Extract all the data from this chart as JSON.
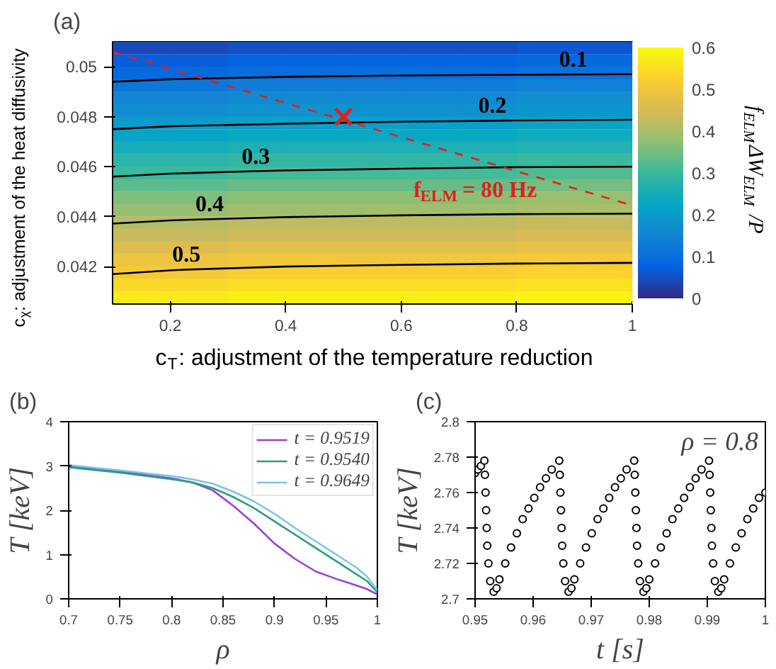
{
  "chart_data": [
    {
      "type": "heatmap",
      "xlabel": "c$_{T}$: adjustment of the temperature reduction",
      "ylabel": "c$_{χ}$: adjustment of the heat diffusivity",
      "clabel": "f$_{ELM}$ΔW$_{ELM}$ /P",
      "xlim": [
        0.1,
        1
      ],
      "ylim": [
        0.0405,
        0.051
      ],
      "xticks": [
        0.2,
        0.4,
        0.6,
        0.8,
        1
      ],
      "yticks": [
        0.042,
        0.044,
        0.046,
        0.048,
        0.05
      ],
      "clim": [
        0,
        0.6
      ],
      "cticks": [
        0,
        0.1,
        0.2,
        0.3,
        0.4,
        0.5,
        0.6
      ],
      "grid": false,
      "cells": [
        [
          0.04,
          0.04,
          0.05,
          0.05,
          0.05,
          0.05,
          0.05,
          0.06,
          0.06
        ],
        [
          0.07,
          0.07,
          0.08,
          0.08,
          0.08,
          0.08,
          0.08,
          0.09,
          0.09
        ],
        [
          0.09,
          0.09,
          0.1,
          0.1,
          0.1,
          0.1,
          0.1,
          0.11,
          0.11
        ],
        [
          0.12,
          0.12,
          0.13,
          0.13,
          0.13,
          0.13,
          0.13,
          0.14,
          0.14
        ],
        [
          0.15,
          0.15,
          0.16,
          0.16,
          0.16,
          0.16,
          0.16,
          0.17,
          0.17
        ],
        [
          0.17,
          0.17,
          0.18,
          0.18,
          0.18,
          0.18,
          0.18,
          0.19,
          0.19
        ],
        [
          0.2,
          0.2,
          0.21,
          0.21,
          0.21,
          0.21,
          0.21,
          0.22,
          0.22
        ],
        [
          0.22,
          0.22,
          0.23,
          0.23,
          0.23,
          0.23,
          0.23,
          0.24,
          0.24
        ],
        [
          0.25,
          0.25,
          0.26,
          0.26,
          0.26,
          0.26,
          0.26,
          0.27,
          0.27
        ],
        [
          0.28,
          0.28,
          0.29,
          0.29,
          0.29,
          0.29,
          0.29,
          0.3,
          0.3
        ],
        [
          0.3,
          0.3,
          0.31,
          0.31,
          0.31,
          0.31,
          0.31,
          0.32,
          0.32
        ],
        [
          0.33,
          0.33,
          0.34,
          0.34,
          0.34,
          0.34,
          0.34,
          0.35,
          0.35
        ],
        [
          0.36,
          0.36,
          0.37,
          0.37,
          0.37,
          0.37,
          0.37,
          0.38,
          0.38
        ],
        [
          0.38,
          0.38,
          0.39,
          0.39,
          0.39,
          0.39,
          0.39,
          0.4,
          0.4
        ],
        [
          0.41,
          0.41,
          0.42,
          0.42,
          0.42,
          0.42,
          0.42,
          0.43,
          0.43
        ],
        [
          0.43,
          0.43,
          0.44,
          0.44,
          0.44,
          0.44,
          0.44,
          0.45,
          0.45
        ],
        [
          0.46,
          0.46,
          0.47,
          0.47,
          0.47,
          0.47,
          0.47,
          0.48,
          0.48
        ],
        [
          0.49,
          0.49,
          0.5,
          0.5,
          0.5,
          0.5,
          0.5,
          0.51,
          0.51
        ],
        [
          0.51,
          0.51,
          0.52,
          0.52,
          0.52,
          0.52,
          0.52,
          0.53,
          0.53
        ],
        [
          0.54,
          0.54,
          0.55,
          0.55,
          0.55,
          0.55,
          0.55,
          0.56,
          0.56
        ],
        [
          0.57,
          0.57,
          0.58,
          0.58,
          0.58,
          0.58,
          0.58,
          0.59,
          0.59
        ]
      ],
      "series": [
        {
          "type": "line",
          "color": "#000000",
          "x": [
            0.1,
            0.2,
            0.4,
            0.6,
            0.8,
            0.9,
            1
          ],
          "values": [
            0.0494,
            0.0495,
            0.0496,
            0.04965,
            0.04968,
            0.04969,
            0.0497
          ]
        },
        {
          "type": "line",
          "color": "#000000",
          "x": [
            0.1,
            0.2,
            0.4,
            0.6,
            0.76,
            0.8,
            1
          ],
          "values": [
            0.0475,
            0.04762,
            0.04772,
            0.0478,
            0.04784,
            0.04785,
            0.04788
          ]
        },
        {
          "type": "line",
          "color": "#000000",
          "x": [
            0.1,
            0.2,
            0.35,
            0.4,
            0.6,
            0.8,
            1
          ],
          "values": [
            0.0456,
            0.04572,
            0.04582,
            0.04585,
            0.04592,
            0.04598,
            0.046
          ]
        },
        {
          "type": "line",
          "color": "#000000",
          "x": [
            0.1,
            0.2,
            0.27,
            0.4,
            0.6,
            0.8,
            1
          ],
          "values": [
            0.04372,
            0.04385,
            0.0439,
            0.04398,
            0.04405,
            0.0441,
            0.04412
          ]
        },
        {
          "type": "line",
          "color": "#000000",
          "x": [
            0.1,
            0.2,
            0.23,
            0.4,
            0.6,
            0.8,
            1
          ],
          "values": [
            0.0417,
            0.04185,
            0.04188,
            0.042,
            0.04207,
            0.04212,
            0.04215
          ]
        },
        {
          "type": "line",
          "color": "#e0201b",
          "line_style": "dashed",
          "x": [
            0.1,
            1
          ],
          "values": [
            0.0506,
            0.04445
          ]
        },
        {
          "type": "scatter",
          "marker": "cross",
          "color": "#e0201b",
          "x": [
            0.5
          ],
          "values": [
            0.048
          ]
        }
      ],
      "annotations": [
        "(a)",
        {
          "text": "0.1",
          "x": 0.9,
          "y": 0.04969
        },
        {
          "text": "0.2",
          "x": 0.76,
          "y": 0.04784
        },
        {
          "text": "0.3",
          "x": 0.35,
          "y": 0.04582
        },
        {
          "text": "0.4",
          "x": 0.27,
          "y": 0.0439
        },
        {
          "text": "0.5",
          "x": 0.23,
          "y": 0.04188
        },
        {
          "text": "f$_{ELM}$ = 80 Hz",
          "x": 0.73,
          "y": 0.0463
        }
      ]
    },
    {
      "type": "line",
      "xlabel": "ρ",
      "ylabel": "T [keV]",
      "xlim": [
        0.7,
        1
      ],
      "ylim": [
        0,
        4
      ],
      "xticks": [
        0.7,
        0.75,
        0.8,
        0.85,
        0.9,
        0.95,
        1
      ],
      "yticks": [
        0,
        1,
        2,
        3,
        4
      ],
      "legend": "top right",
      "grid": false,
      "x": [
        0.7,
        0.75,
        0.8,
        0.82,
        0.84,
        0.86,
        0.88,
        0.9,
        0.92,
        0.94,
        0.96,
        0.98,
        0.99,
        1
      ],
      "series": [
        {
          "name": "t = 0.9519",
          "color": "#9b3fd9",
          "values": [
            3.0,
            2.88,
            2.72,
            2.63,
            2.45,
            2.1,
            1.7,
            1.25,
            0.9,
            0.62,
            0.45,
            0.3,
            0.22,
            0.1
          ]
        },
        {
          "name": "t = 0.9540",
          "color": "#2e9e7e",
          "values": [
            2.97,
            2.85,
            2.7,
            2.63,
            2.5,
            2.3,
            2.05,
            1.75,
            1.45,
            1.15,
            0.85,
            0.55,
            0.4,
            0.15
          ]
        },
        {
          "name": "t = 0.9649",
          "color": "#7cc4ea",
          "values": [
            3.02,
            2.9,
            2.77,
            2.7,
            2.6,
            2.42,
            2.2,
            1.92,
            1.6,
            1.3,
            1.0,
            0.7,
            0.5,
            0.2
          ]
        }
      ],
      "annotations": [
        "(b)"
      ]
    },
    {
      "type": "scatter",
      "marker": "circle",
      "xlabel": "t [s]",
      "ylabel": "T [keV]",
      "xlim": [
        0.95,
        1
      ],
      "ylim": [
        2.7,
        2.8
      ],
      "xticks": [
        0.95,
        0.96,
        0.97,
        0.98,
        0.99,
        1
      ],
      "yticks": [
        2.7,
        2.72,
        2.74,
        2.76,
        2.78,
        2.8
      ],
      "grid": false,
      "series": [
        {
          "color": "#000000",
          "x": [
            0.95,
            0.9505,
            0.951,
            0.9516,
            0.9517,
            0.9518,
            0.9519,
            0.952,
            0.9521,
            0.9523,
            0.9526,
            0.9532,
            0.9537,
            0.9542,
            0.9552,
            0.9562,
            0.9572,
            0.9582,
            0.9592,
            0.9602,
            0.9612,
            0.9622,
            0.9632,
            0.9645,
            0.9646,
            0.9647,
            0.9648,
            0.9649,
            0.965,
            0.9652,
            0.9655,
            0.9661,
            0.9666,
            0.9671,
            0.9681,
            0.9691,
            0.9701,
            0.9711,
            0.9721,
            0.9731,
            0.9741,
            0.9751,
            0.9761,
            0.9774,
            0.9775,
            0.9776,
            0.9777,
            0.9778,
            0.9779,
            0.9781,
            0.9784,
            0.979,
            0.9795,
            0.98,
            0.981,
            0.982,
            0.983,
            0.984,
            0.985,
            0.986,
            0.987,
            0.988,
            0.989,
            0.9903,
            0.9904,
            0.9905,
            0.9906,
            0.9907,
            0.9908,
            0.991,
            0.9913,
            0.9919,
            0.9924,
            0.9929,
            0.9939,
            0.9949,
            0.9959,
            0.9969,
            0.9979,
            0.9989,
            1
          ],
          "values": [
            2.771,
            2.773,
            2.775,
            2.778,
            2.77,
            2.76,
            2.75,
            2.74,
            2.73,
            2.72,
            2.71,
            2.704,
            2.706,
            2.711,
            2.72,
            2.729,
            2.737,
            2.745,
            2.751,
            2.757,
            2.763,
            2.768,
            2.773,
            2.778,
            2.77,
            2.76,
            2.75,
            2.74,
            2.73,
            2.72,
            2.71,
            2.704,
            2.706,
            2.711,
            2.72,
            2.729,
            2.737,
            2.745,
            2.751,
            2.757,
            2.763,
            2.768,
            2.773,
            2.778,
            2.77,
            2.76,
            2.75,
            2.74,
            2.73,
            2.72,
            2.71,
            2.704,
            2.706,
            2.711,
            2.72,
            2.729,
            2.737,
            2.745,
            2.751,
            2.757,
            2.763,
            2.768,
            2.773,
            2.778,
            2.77,
            2.76,
            2.75,
            2.74,
            2.73,
            2.72,
            2.71,
            2.704,
            2.706,
            2.711,
            2.72,
            2.729,
            2.737,
            2.745,
            2.751,
            2.757,
            2.76
          ]
        }
      ],
      "annotations": [
        "(c)",
        "ρ = 0.8"
      ]
    }
  ]
}
